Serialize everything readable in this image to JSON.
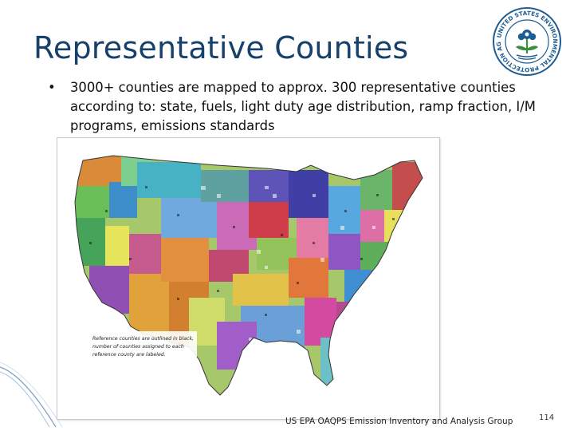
{
  "slide": {
    "title": "Representative Counties",
    "bullet": "3000+ counties are mapped to approx. 300 representative counties according to: state, fuels, light duty age distribution, ramp fraction, I/M programs, emissions standards",
    "bullet_marker": "•",
    "map_legend_lines": [
      "Reference counties are outlined in black,",
      "number of counties assigned to each",
      "reference county are labeled."
    ],
    "footer": "US EPA OAQPS Emission Inventory and Analysis Group",
    "page_number": "114",
    "seal_text": "UNITED STATES ENVIRONMENTAL PROTECTION AGENCY"
  },
  "colors": {
    "title": "#17406b",
    "seal_blue": "#1d5d93",
    "seal_green": "#3b8e3b"
  },
  "icons": {
    "logo": "epa-seal-icon",
    "map": "us-counties-map"
  }
}
